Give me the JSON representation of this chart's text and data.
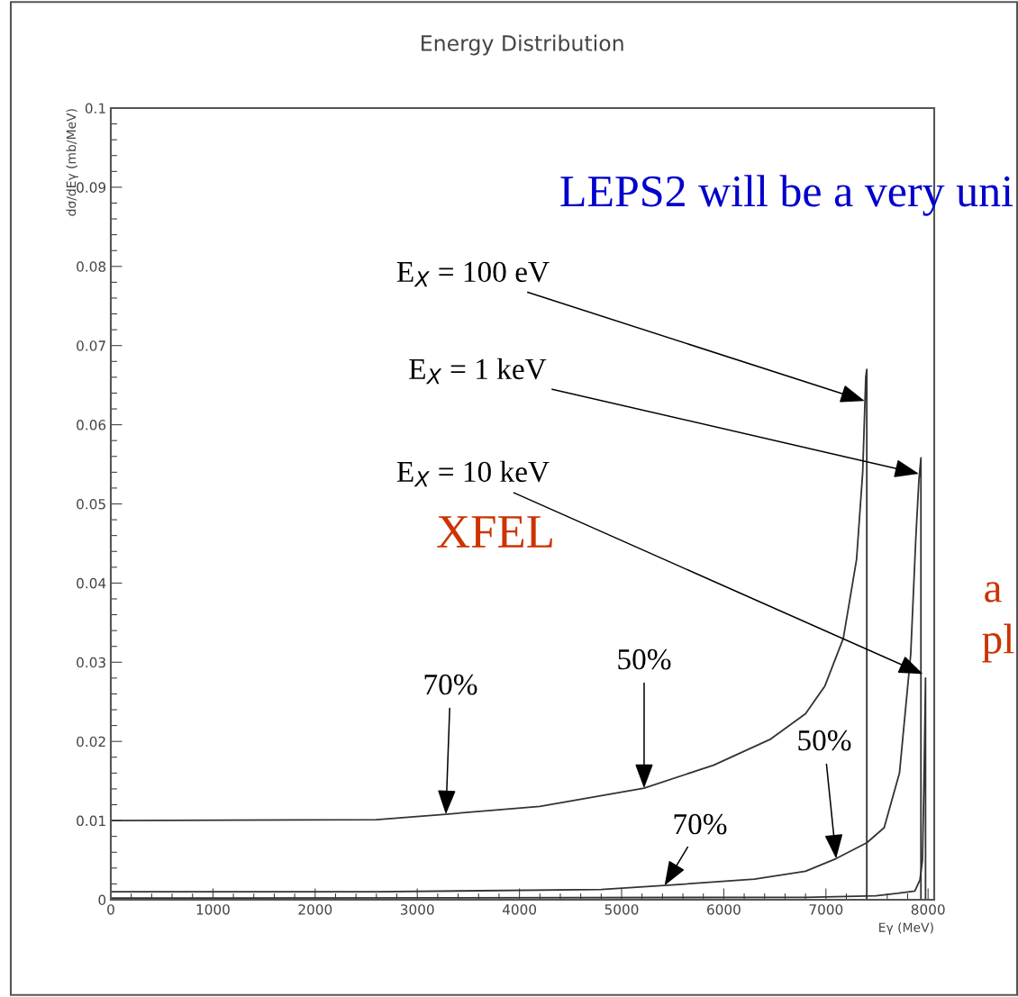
{
  "chart_data": {
    "type": "line",
    "title": "Energy Distribution",
    "xlabel": "Eγ (MeV)",
    "ylabel": "dσ/dEγ (mb/MeV)",
    "series": [
      {
        "color": "#333333",
        "x": [
          0,
          2600,
          3280,
          4200,
          5220,
          5900,
          6460,
          6800,
          6990,
          7170,
          7300,
          7360,
          7390,
          7400,
          7400
        ],
        "values": [
          0.01,
          0.0101,
          0.0108,
          0.0118,
          0.0141,
          0.017,
          0.0203,
          0.0235,
          0.027,
          0.033,
          0.043,
          0.054,
          0.066,
          0.067,
          0
        ]
      },
      {
        "color": "#333333",
        "x": [
          0,
          2600,
          4800,
          5420,
          6300,
          6800,
          7100,
          7400,
          7570,
          7720,
          7830,
          7880,
          7910,
          7930,
          7930
        ],
        "values": [
          0.001,
          0.001,
          0.0013,
          0.0018,
          0.0026,
          0.0036,
          0.0052,
          0.0072,
          0.0091,
          0.016,
          0.031,
          0.0457,
          0.053,
          0.0558,
          0
        ]
      },
      {
        "color": "#333333",
        "x": [
          0,
          6800,
          7490,
          7700,
          7870,
          7920,
          7945,
          7960,
          7975,
          7975
        ],
        "values": [
          0.0002,
          0.0003,
          0.0005,
          0.0008,
          0.0011,
          0.0025,
          0.005,
          0.015,
          0.028,
          0
        ]
      }
    ],
    "xlim": [
      0,
      8060
    ],
    "xticks": [
      0,
      1000,
      2000,
      3000,
      4000,
      5000,
      6000,
      7000,
      8000
    ],
    "ylim": [
      0,
      0.1
    ],
    "yticks": [
      0,
      0.01,
      0.02,
      0.03,
      0.04,
      0.05,
      0.06,
      0.07,
      0.08,
      0.09,
      0.1
    ],
    "annotations": [
      {
        "text": "E$_{X}$ = 100 eV",
        "x": 7380,
        "y": 0.063
      },
      {
        "text": "E$_{X}$ = 1 keV",
        "x": 7910,
        "y": 0.0538
      },
      {
        "text": "E$_{X}$ = 10 keV",
        "x": 7950,
        "y": 0.0285
      },
      {
        "text": "70%",
        "x": 3280,
        "y": 0.0108
      },
      {
        "text": "50%",
        "x": 5220,
        "y": 0.0141
      },
      {
        "text": "70%",
        "x": 5420,
        "y": 0.0018
      },
      {
        "text": "50%",
        "x": 7100,
        "y": 0.0052
      },
      "XFEL",
      "LEPS2 will be a very uni",
      "a",
      "pl"
    ]
  }
}
